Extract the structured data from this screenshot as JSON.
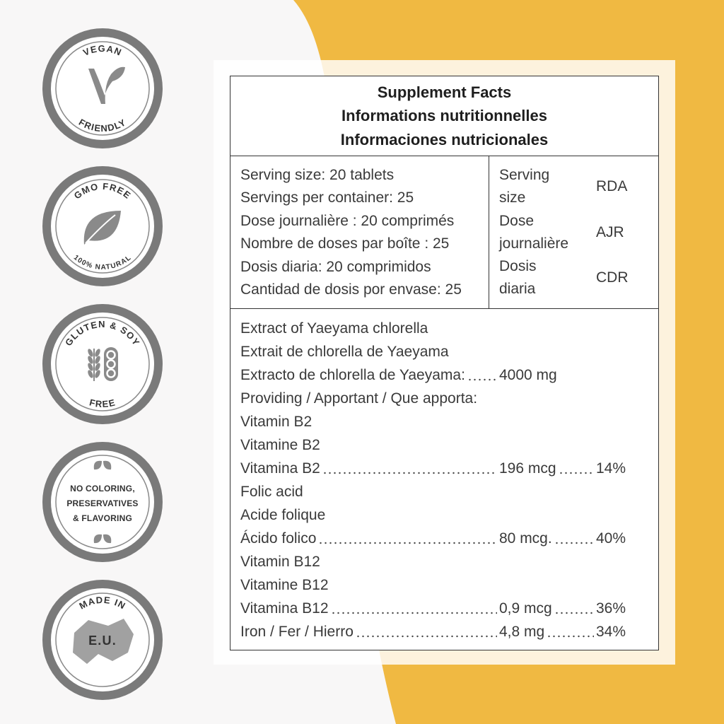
{
  "badges": [
    {
      "top": "VEGAN",
      "bottom": "FRIENDLY"
    },
    {
      "top": "GMO FREE",
      "bottom": "100% NATURAL"
    },
    {
      "top": "GLUTEN & SOY",
      "bottom": "FREE"
    },
    {
      "lines": [
        "NO COLORING,",
        "PRESERVATIVES",
        "& FLAVORING"
      ]
    },
    {
      "top": "MADE IN",
      "center": "E.U."
    }
  ],
  "facts": {
    "title": [
      "Supplement Facts",
      "Informations nutritionnelles",
      "Informaciones nutricionales"
    ],
    "serving_lines": [
      "Serving size: 20 tablets",
      "Servings per container: 25",
      "Dose journalière : 20 comprimés",
      "Nombre de doses par boîte : 25",
      "Dosis diaria: 20 comprimidos",
      "Cantidad de dosis por envase: 25"
    ],
    "columns": [
      {
        "label": "Serving size",
        "abbr": "RDA"
      },
      {
        "label": "Dose journalière",
        "abbr": "AJR"
      },
      {
        "label": "Dosis diaria",
        "abbr": "CDR"
      }
    ],
    "ingredients": [
      {
        "label": "Extract of Yaeyama chlorella"
      },
      {
        "label": "Extrait de chlorella de Yaeyama"
      },
      {
        "label": "Extracto de chlorella de Yaeyama:",
        "amount": "4000 mg"
      },
      {
        "label": "Providing / Apportant / Que apporta:"
      },
      {
        "label": "Vitamin B2"
      },
      {
        "label": "Vitamine B2"
      },
      {
        "label": "Vitamina B2",
        "amount": "196 mcg",
        "dv": "14%"
      },
      {
        "label": "Folic acid"
      },
      {
        "label": "Acide folique"
      },
      {
        "label": "Ácido folico",
        "amount": "80 mcg.",
        "dv": "40%"
      },
      {
        "label": "Vitamin B12"
      },
      {
        "label": "Vitamine B12"
      },
      {
        "label": "Vitamina B12",
        "amount": "0,9 mcg",
        "dv": "36%"
      },
      {
        "label": "Iron / Fer / Hierro",
        "amount": "4,8 mg",
        "dv": "34%"
      }
    ]
  }
}
